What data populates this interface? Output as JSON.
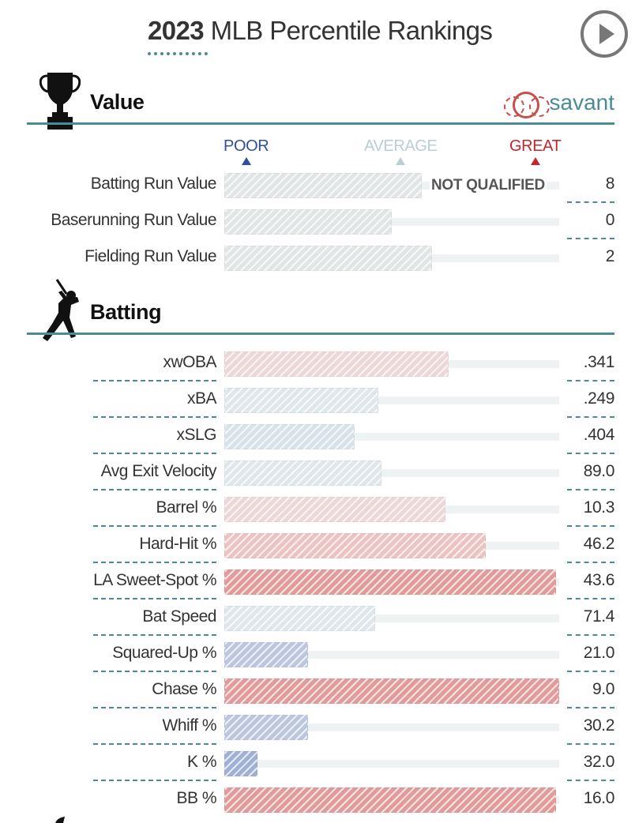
{
  "header": {
    "year": "2023",
    "title_rest": "MLB Percentile Rankings"
  },
  "legend": {
    "poor": "POOR",
    "average": "AVERAGE",
    "great": "GREAT",
    "colors": {
      "poor": "#2f4f9c",
      "average": "#b9cfd3",
      "great": "#c4262b"
    }
  },
  "brand": {
    "name": "savant",
    "color": "#4a8c93"
  },
  "sections": {
    "value": {
      "title": "Value",
      "icon": "trophy-icon",
      "rows": [
        {
          "label": "Batting Run Value",
          "value": "8",
          "percentile": 59,
          "color": "#e2e5e6",
          "note": "NOT QUALIFIED"
        },
        {
          "label": "Baserunning Run Value",
          "value": "0",
          "percentile": 50,
          "color": "#e2e5e6"
        },
        {
          "label": "Fielding Run Value",
          "value": "2",
          "percentile": 62,
          "color": "#e2e5e6"
        }
      ]
    },
    "batting": {
      "title": "Batting",
      "icon": "batter-icon",
      "rows": [
        {
          "label": "xwOBA",
          "value": ".341",
          "percentile": 67,
          "color": "#ecd8d8"
        },
        {
          "label": "xBA",
          "value": ".249",
          "percentile": 46,
          "color": "#dfe7ea"
        },
        {
          "label": "xSLG",
          "value": ".404",
          "percentile": 39,
          "color": "#d9e2ea"
        },
        {
          "label": "Avg Exit Velocity",
          "value": "89.0",
          "percentile": 47,
          "color": "#dfe7ea"
        },
        {
          "label": "Barrel %",
          "value": "10.3",
          "percentile": 66,
          "color": "#ecd8d8"
        },
        {
          "label": "Hard-Hit %",
          "value": "46.2",
          "percentile": 78,
          "color": "#ebc3c2"
        },
        {
          "label": "LA Sweet-Spot %",
          "value": "43.6",
          "percentile": 99,
          "color": "#e29b9b"
        },
        {
          "label": "Bat Speed",
          "value": "71.4",
          "percentile": 45,
          "color": "#dfe7ea"
        },
        {
          "label": "Squared-Up %",
          "value": "21.0",
          "percentile": 25,
          "color": "#bcc6df"
        },
        {
          "label": "Chase %",
          "value": "9.0",
          "percentile": 100,
          "color": "#e29b9b"
        },
        {
          "label": "Whiff %",
          "value": "30.2",
          "percentile": 25,
          "color": "#bcc6df"
        },
        {
          "label": "K %",
          "value": "32.0",
          "percentile": 10,
          "color": "#9fb0d4"
        },
        {
          "label": "BB %",
          "value": "16.0",
          "percentile": 99,
          "color": "#e29b9b"
        }
      ]
    }
  }
}
